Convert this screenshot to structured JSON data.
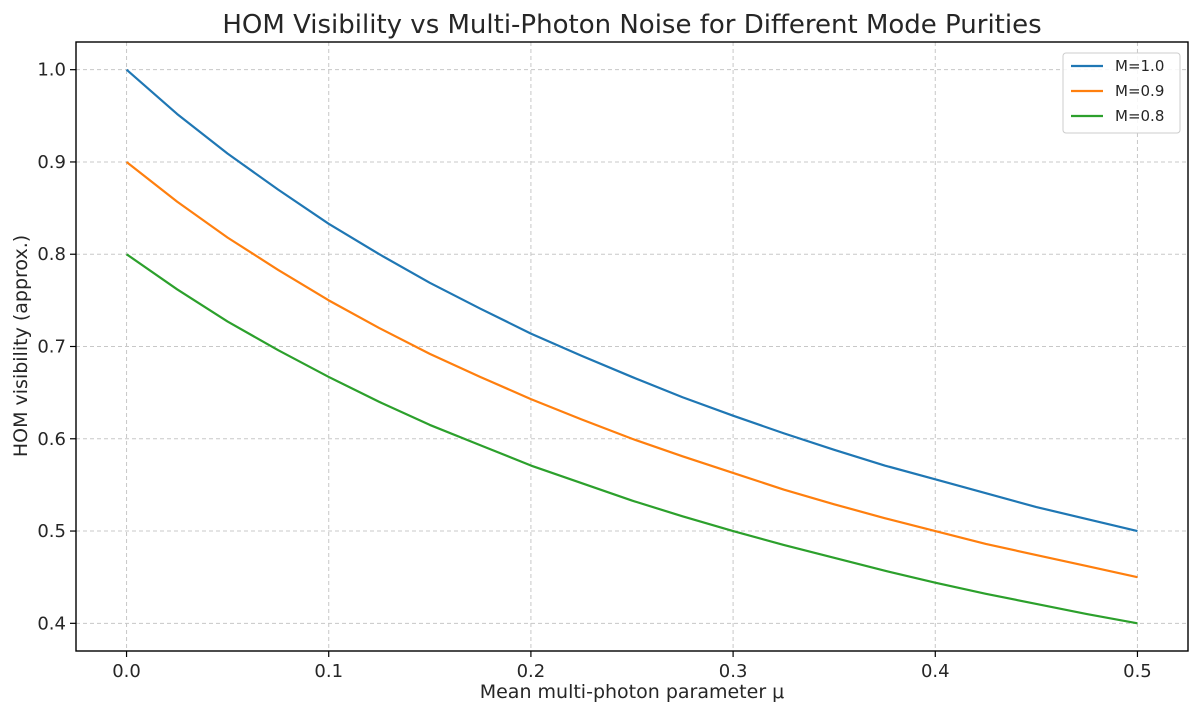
{
  "chart_data": {
    "type": "line",
    "title": "HOM Visibility vs Multi-Photon Noise for Different Mode Purities",
    "xlabel": "Mean multi-photon parameter μ",
    "ylabel": "HOM visibility (approx.)",
    "xlim": [
      -0.025,
      0.525
    ],
    "ylim": [
      0.37,
      1.03
    ],
    "xticks": [
      0.0,
      0.1,
      0.2,
      0.3,
      0.4,
      0.5
    ],
    "xtick_labels": [
      "0.0",
      "0.1",
      "0.2",
      "0.3",
      "0.4",
      "0.5"
    ],
    "yticks": [
      0.4,
      0.5,
      0.6,
      0.7,
      0.8,
      0.9,
      1.0
    ],
    "ytick_labels": [
      "0.4",
      "0.5",
      "0.6",
      "0.7",
      "0.8",
      "0.9",
      "1.0"
    ],
    "grid": true,
    "legend_position": "top-right",
    "x": [
      0.0,
      0.025,
      0.05,
      0.075,
      0.1,
      0.125,
      0.15,
      0.175,
      0.2,
      0.225,
      0.25,
      0.275,
      0.3,
      0.325,
      0.35,
      0.375,
      0.4,
      0.425,
      0.45,
      0.475,
      0.5
    ],
    "series": [
      {
        "name": "M=1.0",
        "color": "#1f77b4",
        "values": [
          1.0,
          0.952,
          0.909,
          0.87,
          0.833,
          0.8,
          0.769,
          0.741,
          0.714,
          0.69,
          0.667,
          0.645,
          0.625,
          0.606,
          0.588,
          0.571,
          0.556,
          0.541,
          0.526,
          0.513,
          0.5
        ]
      },
      {
        "name": "M=0.9",
        "color": "#ff7f0e",
        "values": [
          0.9,
          0.857,
          0.818,
          0.783,
          0.75,
          0.72,
          0.692,
          0.667,
          0.643,
          0.621,
          0.6,
          0.581,
          0.563,
          0.545,
          0.529,
          0.514,
          0.5,
          0.486,
          0.474,
          0.462,
          0.45
        ]
      },
      {
        "name": "M=0.8",
        "color": "#2ca02c",
        "values": [
          0.8,
          0.762,
          0.727,
          0.696,
          0.667,
          0.64,
          0.615,
          0.593,
          0.571,
          0.552,
          0.533,
          0.516,
          0.5,
          0.485,
          0.471,
          0.457,
          0.444,
          0.432,
          0.421,
          0.41,
          0.4
        ]
      }
    ]
  }
}
